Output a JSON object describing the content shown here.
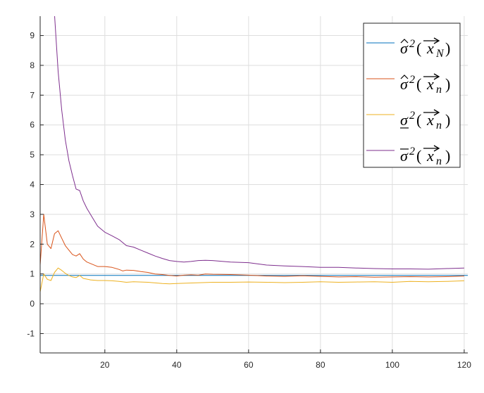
{
  "chart_data": {
    "type": "line",
    "title": "",
    "xlabel": "",
    "ylabel": "",
    "xlim": [
      2,
      121
    ],
    "ylim": [
      -1.65,
      9.65
    ],
    "xticks": [
      20,
      40,
      60,
      80,
      100,
      120
    ],
    "yticks": [
      -1,
      0,
      1,
      2,
      3,
      4,
      5,
      6,
      7,
      8,
      9
    ],
    "xtick_labels": [
      "20",
      "40",
      "60",
      "80",
      "100",
      "120"
    ],
    "ytick_labels": [
      "-1",
      "0",
      "1",
      "2",
      "3",
      "4",
      "5",
      "6",
      "7",
      "8",
      "9"
    ],
    "grid": true,
    "legend_position": "top-right",
    "series": [
      {
        "name": "σ̂²(x⃗_N)",
        "legend": {
          "base": "σ",
          "accent": "hat",
          "sup": "2",
          "arg": "x",
          "sub": "N"
        },
        "color": "#0072BD",
        "x": [
          2,
          121
        ],
        "y": [
          0.95,
          0.95
        ]
      },
      {
        "name": "σ̂²(x⃗_n)",
        "legend": {
          "base": "σ",
          "accent": "hat",
          "sup": "2",
          "arg": "x",
          "sub": "n"
        },
        "color": "#D95319",
        "x": [
          2,
          3,
          4,
          5,
          6,
          7,
          8,
          9,
          10,
          11,
          12,
          13,
          14,
          15,
          16,
          18,
          20,
          22,
          24,
          25,
          26,
          28,
          30,
          32,
          34,
          36,
          38,
          40,
          42,
          44,
          46,
          48,
          50,
          55,
          60,
          65,
          70,
          75,
          80,
          85,
          90,
          95,
          100,
          105,
          110,
          115,
          120
        ],
        "y": [
          1.3,
          3.0,
          2.0,
          1.85,
          2.35,
          2.45,
          2.2,
          1.95,
          1.8,
          1.65,
          1.6,
          1.68,
          1.5,
          1.4,
          1.35,
          1.25,
          1.25,
          1.22,
          1.15,
          1.1,
          1.13,
          1.12,
          1.08,
          1.05,
          1.0,
          0.98,
          0.95,
          0.93,
          0.96,
          0.97,
          0.96,
          1.0,
          0.99,
          0.98,
          0.96,
          0.93,
          0.92,
          0.94,
          0.92,
          0.9,
          0.91,
          0.89,
          0.9,
          0.91,
          0.9,
          0.91,
          0.93
        ]
      },
      {
        "name": "σ̲²(x⃗_n)",
        "legend": {
          "base": "σ",
          "accent": "underline",
          "sup": "2",
          "arg": "x",
          "sub": "n"
        },
        "color": "#EDB120",
        "x": [
          2,
          3,
          4,
          5,
          6,
          7,
          8,
          9,
          10,
          11,
          12,
          13,
          14,
          16,
          18,
          20,
          22,
          24,
          26,
          28,
          30,
          32,
          34,
          36,
          38,
          40,
          45,
          50,
          55,
          60,
          65,
          70,
          75,
          80,
          85,
          90,
          95,
          100,
          105,
          110,
          115,
          120
        ],
        "y": [
          0.4,
          1.0,
          0.82,
          0.78,
          1.05,
          1.2,
          1.12,
          1.02,
          0.95,
          0.9,
          0.88,
          0.95,
          0.85,
          0.8,
          0.78,
          0.78,
          0.77,
          0.75,
          0.72,
          0.74,
          0.73,
          0.72,
          0.7,
          0.68,
          0.67,
          0.68,
          0.7,
          0.72,
          0.72,
          0.73,
          0.72,
          0.71,
          0.72,
          0.74,
          0.72,
          0.73,
          0.74,
          0.72,
          0.75,
          0.74,
          0.75,
          0.77
        ]
      },
      {
        "name": "σ̄²(x⃗_n)",
        "legend": {
          "base": "σ",
          "accent": "overline",
          "sup": "2",
          "arg": "x",
          "sub": "n"
        },
        "color": "#7E2F8E",
        "x": [
          6,
          7,
          8,
          9,
          10,
          11,
          12,
          13,
          14,
          15,
          16,
          17,
          18,
          20,
          22,
          24,
          26,
          28,
          30,
          32,
          34,
          36,
          38,
          40,
          42,
          44,
          46,
          48,
          50,
          55,
          60,
          65,
          70,
          75,
          80,
          85,
          90,
          95,
          100,
          105,
          110,
          115,
          120
        ],
        "y": [
          9.7,
          7.8,
          6.5,
          5.5,
          4.8,
          4.3,
          3.85,
          3.8,
          3.45,
          3.2,
          3.0,
          2.8,
          2.6,
          2.4,
          2.28,
          2.15,
          1.95,
          1.9,
          1.8,
          1.7,
          1.6,
          1.52,
          1.45,
          1.42,
          1.4,
          1.42,
          1.45,
          1.46,
          1.45,
          1.4,
          1.38,
          1.3,
          1.27,
          1.25,
          1.22,
          1.22,
          1.2,
          1.18,
          1.17,
          1.17,
          1.16,
          1.18,
          1.2
        ]
      }
    ]
  }
}
